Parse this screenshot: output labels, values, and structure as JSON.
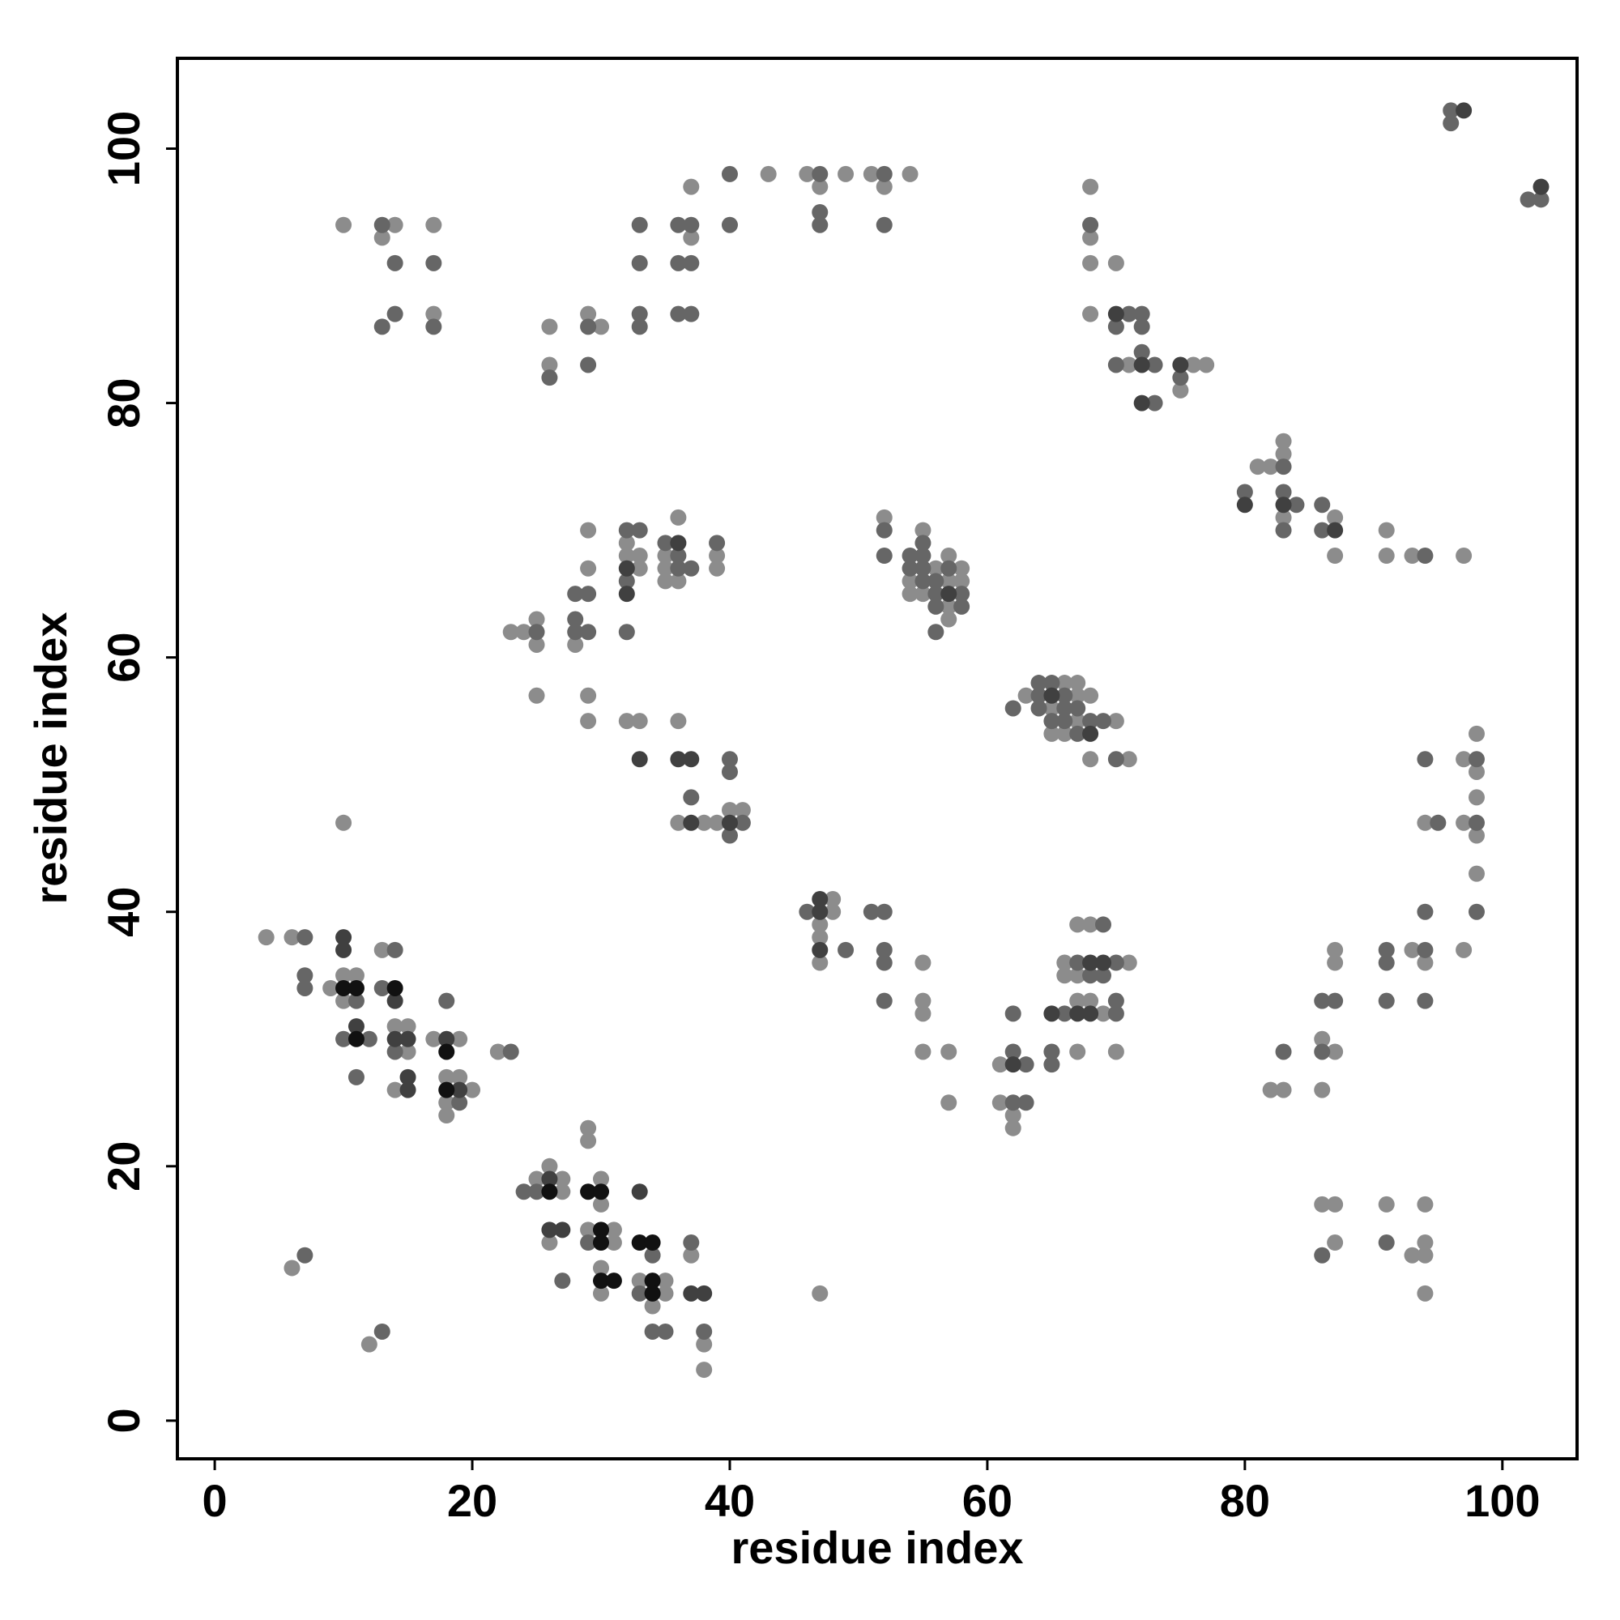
{
  "chart_data": {
    "type": "scatter",
    "xlabel": "residue index",
    "ylabel": "residue index",
    "xlim": [
      -2.9,
      105.8
    ],
    "ylim": [
      -3,
      107.1
    ],
    "xticks": [
      0,
      20,
      40,
      60,
      80,
      100
    ],
    "yticks": [
      0,
      20,
      40,
      60,
      80,
      100
    ],
    "series": [
      {
        "color": "#8c8c8c",
        "x": [
          10,
          13,
          14,
          17,
          17,
          26,
          26,
          29,
          30,
          37,
          37,
          43,
          46,
          47,
          49,
          51,
          52,
          54,
          68,
          68,
          68,
          70,
          68,
          71,
          76,
          77,
          75,
          83,
          83,
          81,
          82,
          83,
          87,
          87,
          91,
          91,
          93,
          97,
          23,
          24,
          25,
          25,
          25,
          28,
          29,
          29,
          29,
          29,
          32,
          32,
          33,
          33,
          32,
          33,
          36,
          35,
          35,
          35,
          36,
          39,
          39,
          36,
          36,
          38,
          39,
          40,
          41,
          52,
          55,
          56,
          54,
          58,
          57,
          54,
          55,
          57,
          57,
          57,
          58,
          63,
          66,
          67,
          67,
          68,
          65,
          67,
          70,
          65,
          66,
          68,
          71,
          98,
          97,
          98,
          98,
          94,
          97,
          98,
          98,
          97,
          4,
          6,
          13,
          10,
          11,
          9,
          10,
          14,
          15,
          17,
          19,
          15,
          22,
          18,
          19,
          14,
          20,
          18,
          18,
          25,
          26,
          27,
          27,
          29,
          29,
          30,
          30,
          26,
          29,
          31,
          31,
          30,
          30,
          33,
          35,
          35,
          34,
          37,
          38,
          38,
          6,
          12,
          10,
          47,
          48,
          48,
          47,
          47,
          47,
          55,
          55,
          55,
          55,
          57,
          57,
          61,
          61,
          62,
          62,
          66,
          71,
          67,
          68,
          66,
          67,
          67,
          68,
          69,
          67,
          70,
          87,
          93,
          87,
          94,
          86,
          87,
          82,
          83,
          86,
          86,
          87,
          91,
          94,
          87,
          94,
          93,
          94,
          94
        ],
        "values": [
          94,
          93,
          94,
          94,
          87,
          86,
          83,
          87,
          86,
          93,
          97,
          98,
          98,
          97,
          98,
          98,
          97,
          98,
          97,
          93,
          91,
          91,
          87,
          83,
          83,
          83,
          81,
          77,
          76,
          75,
          75,
          71,
          71,
          68,
          70,
          68,
          68,
          68,
          62,
          62,
          63,
          61,
          57,
          61,
          70,
          67,
          57,
          55,
          69,
          68,
          68,
          67,
          55,
          55,
          71,
          68,
          67,
          66,
          66,
          68,
          67,
          55,
          47,
          47,
          47,
          48,
          48,
          71,
          70,
          67,
          66,
          67,
          68,
          65,
          65,
          64,
          63,
          66,
          66,
          57,
          58,
          58,
          57,
          57,
          56,
          55,
          55,
          54,
          54,
          52,
          52,
          54,
          52,
          51,
          49,
          47,
          47,
          46,
          43,
          37,
          38,
          38,
          37,
          35,
          35,
          34,
          33,
          31,
          31,
          30,
          30,
          29,
          29,
          27,
          27,
          26,
          26,
          25,
          24,
          19,
          20,
          19,
          18,
          23,
          22,
          19,
          17,
          14,
          15,
          15,
          14,
          12,
          10,
          11,
          11,
          10,
          9,
          13,
          6,
          4,
          12,
          6,
          47,
          10,
          41,
          40,
          39,
          38,
          36,
          36,
          33,
          32,
          29,
          29,
          25,
          28,
          25,
          24,
          23,
          36,
          36,
          39,
          39,
          35,
          35,
          33,
          33,
          32,
          29,
          29,
          37,
          37,
          36,
          36,
          30,
          29,
          26,
          26,
          26,
          17,
          17,
          17,
          17,
          14,
          14,
          13,
          13,
          10
        ]
      },
      {
        "color": "#666666",
        "x": [
          96,
          96,
          102,
          103,
          13,
          14,
          14,
          13,
          17,
          17,
          26,
          29,
          29,
          33,
          33,
          33,
          33,
          36,
          37,
          36,
          37,
          36,
          37,
          40,
          40,
          47,
          47,
          47,
          52,
          52,
          68,
          71,
          72,
          70,
          72,
          72,
          70,
          73,
          75,
          73,
          83,
          80,
          83,
          84,
          83,
          86,
          86,
          94,
          25,
          28,
          29,
          28,
          28,
          29,
          32,
          33,
          32,
          32,
          35,
          36,
          36,
          37,
          39,
          37,
          41,
          40,
          40,
          40,
          52,
          52,
          54,
          55,
          55,
          54,
          55,
          55,
          56,
          57,
          56,
          58,
          56,
          58,
          56,
          62,
          64,
          65,
          64,
          66,
          64,
          66,
          67,
          65,
          66,
          68,
          69,
          67,
          70,
          94,
          98,
          95,
          98,
          94,
          98,
          7,
          14,
          7,
          7,
          13,
          11,
          18,
          10,
          12,
          14,
          23,
          11,
          19,
          24,
          25,
          34,
          29,
          27,
          33,
          34,
          35,
          37,
          38,
          7,
          13,
          46,
          49,
          51,
          52,
          52,
          52,
          52,
          62,
          62,
          63,
          62,
          63,
          66,
          65,
          65,
          67,
          70,
          69,
          68,
          69,
          70,
          70,
          91,
          94,
          91,
          86,
          87,
          91,
          94,
          86,
          83,
          91,
          86
        ],
        "values": [
          103,
          102,
          96,
          96,
          94,
          91,
          87,
          86,
          91,
          86,
          82,
          86,
          83,
          94,
          91,
          87,
          86,
          94,
          94,
          91,
          91,
          87,
          87,
          98,
          94,
          98,
          95,
          94,
          98,
          94,
          94,
          87,
          87,
          86,
          86,
          84,
          83,
          83,
          82,
          80,
          75,
          73,
          73,
          72,
          70,
          72,
          70,
          68,
          62,
          65,
          65,
          63,
          62,
          62,
          70,
          70,
          66,
          62,
          69,
          68,
          67,
          67,
          69,
          49,
          47,
          46,
          52,
          51,
          70,
          68,
          68,
          69,
          68,
          67,
          67,
          66,
          66,
          67,
          65,
          65,
          64,
          64,
          62,
          56,
          58,
          58,
          57,
          57,
          56,
          56,
          56,
          55,
          55,
          55,
          55,
          54,
          52,
          52,
          52,
          47,
          47,
          40,
          40,
          38,
          37,
          35,
          34,
          34,
          33,
          33,
          30,
          30,
          29,
          29,
          27,
          25,
          18,
          18,
          13,
          14,
          11,
          10,
          7,
          7,
          14,
          7,
          13,
          7,
          40,
          37,
          40,
          40,
          37,
          36,
          33,
          32,
          29,
          28,
          25,
          25,
          32,
          29,
          28,
          36,
          36,
          39,
          35,
          35,
          33,
          32,
          37,
          37,
          36,
          33,
          33,
          33,
          33,
          29,
          29,
          14,
          13
        ]
      },
      {
        "color": "#404040",
        "x": [
          97,
          103,
          70,
          72,
          75,
          72,
          80,
          83,
          87,
          32,
          32,
          33,
          36,
          36,
          37,
          37,
          40,
          57,
          65,
          68,
          10,
          10,
          14,
          11,
          14,
          15,
          18,
          15,
          15,
          19,
          26,
          33,
          26,
          27,
          37,
          38,
          47,
          47,
          47,
          62,
          65,
          68,
          69,
          67,
          68
        ],
        "values": [
          103,
          97,
          87,
          83,
          83,
          80,
          72,
          72,
          70,
          67,
          65,
          52,
          69,
          52,
          52,
          47,
          47,
          65,
          57,
          54,
          38,
          37,
          33,
          31,
          30,
          30,
          30,
          27,
          26,
          26,
          19,
          18,
          15,
          15,
          10,
          10,
          41,
          40,
          37,
          28,
          32,
          36,
          36,
          32,
          32
        ]
      },
      {
        "color": "#111111",
        "x": [
          10,
          11,
          14,
          11,
          18,
          18,
          26,
          29,
          30,
          30,
          30,
          30,
          31,
          33,
          34,
          34,
          34
        ],
        "values": [
          34,
          34,
          34,
          30,
          29,
          26,
          18,
          18,
          18,
          15,
          14,
          11,
          11,
          14,
          14,
          11,
          10
        ]
      }
    ]
  }
}
